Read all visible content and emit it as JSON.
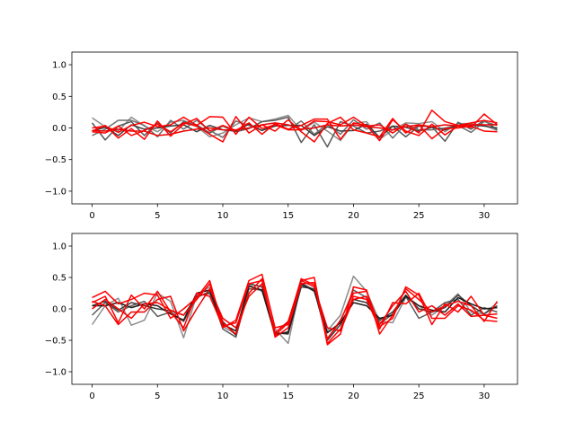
{
  "chart_data": [
    {
      "type": "line",
      "title": "",
      "xlabel": "",
      "ylabel": "",
      "xlim": [
        -1.55,
        32.55
      ],
      "ylim": [
        -1.2,
        1.2
      ],
      "xticks": [
        0,
        5,
        10,
        15,
        20,
        25,
        30
      ],
      "xtick_labels": [
        "0",
        "5",
        "10",
        "15",
        "20",
        "25",
        "30"
      ],
      "yticks": [
        -1.0,
        -0.5,
        0.0,
        0.5,
        1.0
      ],
      "ytick_labels": [
        "−1.0",
        "−0.5",
        "0.0",
        "0.5",
        "1.0"
      ],
      "grid": false,
      "x": [
        0,
        1,
        2,
        3,
        4,
        5,
        6,
        7,
        8,
        9,
        10,
        11,
        12,
        13,
        14,
        15,
        16,
        17,
        18,
        19,
        20,
        21,
        22,
        23,
        24,
        25,
        26,
        27,
        28,
        29,
        30,
        31
      ],
      "series": [
        {
          "color": "#808080",
          "values": [
            0.16,
            0.02,
            -0.05,
            0.17,
            0.03,
            -0.06,
            0.09,
            0.12,
            0.02,
            -0.14,
            -0.08,
            0.05,
            0.16,
            0.1,
            0.14,
            0.2,
            -0.04,
            0.09,
            -0.05,
            -0.2,
            0.07,
            0.1,
            -0.18,
            -0.03,
            0.08,
            0.07,
            0.1,
            -0.06,
            0.07,
            0.07,
            0.04,
            -0.04
          ]
        },
        {
          "color": "#595959",
          "values": [
            0.08,
            -0.19,
            0.03,
            0.1,
            -0.12,
            0.08,
            -0.08,
            0.1,
            0.05,
            -0.08,
            0.03,
            -0.06,
            -0.01,
            0.1,
            0.12,
            0.17,
            -0.23,
            0.05,
            -0.3,
            0.1,
            0.03,
            -0.08,
            -0.05,
            0.03,
            -0.14,
            0.03,
            0.02,
            -0.21,
            0.09,
            -0.02,
            0.12,
            -0.03
          ]
        },
        {
          "color": "#6e6e6e",
          "values": [
            -0.12,
            -0.02,
            0.12,
            0.12,
            0.04,
            -0.14,
            0.12,
            -0.02,
            0.12,
            -0.04,
            -0.15,
            0.11,
            0.04,
            -0.04,
            0.06,
            -0.03,
            0.11,
            -0.1,
            0.06,
            -0.1,
            0.13,
            -0.02,
            0.08,
            -0.16,
            0.06,
            -0.03,
            -0.03,
            0.0,
            0.04,
            -0.07,
            0.1,
            0.04
          ]
        },
        {
          "color": "#3c3c3c",
          "values": [
            -0.05,
            0.01,
            -0.12,
            0.05,
            -0.02,
            0.0,
            0.03,
            0.05,
            -0.06,
            0.04,
            -0.03,
            -0.05,
            0.06,
            -0.04,
            0.03,
            0.04,
            0.04,
            -0.12,
            0.02,
            -0.05,
            -0.04,
            0.06,
            -0.15,
            0.03,
            0.01,
            -0.05,
            0.01,
            -0.03,
            0.04,
            0.05,
            0.03,
            0.0
          ]
        },
        {
          "color": "#ff0000",
          "values": [
            -0.05,
            0.04,
            -0.16,
            -0.01,
            -0.18,
            0.11,
            -0.13,
            0.06,
            0.15,
            -0.05,
            0.04,
            -0.04,
            0.08,
            -0.1,
            0.07,
            -0.02,
            0.04,
            0.14,
            0.14,
            -0.18,
            0.08,
            0.04,
            -0.2,
            0.13,
            -0.05,
            -0.12,
            0.06,
            -0.11,
            0.03,
            0.01,
            0.22,
            0.05
          ]
        },
        {
          "color": "#ff0000",
          "values": [
            0.0,
            0.03,
            -0.07,
            0.04,
            0.09,
            0.02,
            0.05,
            0.17,
            0.04,
            0.18,
            0.17,
            -0.1,
            0.17,
            -0.01,
            0.05,
            -0.03,
            -0.03,
            0.11,
            0.1,
            0.05,
            0.17,
            0.03,
            0.05,
            -0.08,
            0.06,
            -0.08,
            0.28,
            0.1,
            0.04,
            0.08,
            0.12,
            0.08
          ]
        },
        {
          "color": "#ff0000",
          "values": [
            -0.06,
            -0.08,
            0.03,
            -0.12,
            -0.04,
            0.06,
            -0.06,
            0.08,
            0.03,
            -0.1,
            -0.22,
            0.18,
            -0.08,
            0.05,
            -0.05,
            0.13,
            -0.06,
            -0.22,
            0.07,
            0.17,
            -0.03,
            -0.08,
            -0.14,
            0.15,
            -0.08,
            0.05,
            -0.17,
            -0.01,
            0.0,
            0.03,
            -0.05,
            -0.06
          ]
        },
        {
          "color": "#ee0000",
          "values": [
            -0.04,
            -0.05,
            -0.02,
            -0.05,
            -0.05,
            -0.12,
            -0.1,
            -0.05,
            -0.02,
            0.0,
            -0.03,
            -0.03,
            0.0,
            0.05,
            0.08,
            0.05,
            -0.02,
            0.0,
            0.05,
            0.03,
            0.05,
            0.02,
            0.0,
            -0.03,
            0.02,
            0.05,
            0.02,
            0.05,
            0.03,
            0.05,
            0.05,
            0.05
          ]
        }
      ]
    },
    {
      "type": "line",
      "title": "",
      "xlabel": "",
      "ylabel": "",
      "xlim": [
        -1.55,
        32.55
      ],
      "ylim": [
        -1.2,
        1.2
      ],
      "xticks": [
        0,
        5,
        10,
        15,
        20,
        25,
        30
      ],
      "xtick_labels": [
        "0",
        "5",
        "10",
        "15",
        "20",
        "25",
        "30"
      ],
      "yticks": [
        -1.0,
        -0.5,
        0.0,
        0.5,
        1.0
      ],
      "ytick_labels": [
        "−1.0",
        "−0.5",
        "0.0",
        "0.5",
        "1.0"
      ],
      "grid": false,
      "x": [
        0,
        1,
        2,
        3,
        4,
        5,
        6,
        7,
        8,
        9,
        10,
        11,
        12,
        13,
        14,
        15,
        16,
        17,
        18,
        19,
        20,
        21,
        22,
        23,
        24,
        25,
        26,
        27,
        28,
        29,
        30,
        31
      ],
      "series": [
        {
          "color": "#808080",
          "values": [
            -0.25,
            0.05,
            0.17,
            -0.26,
            -0.18,
            0.25,
            0.12,
            -0.46,
            0.22,
            0.35,
            -0.28,
            -0.4,
            0.38,
            0.28,
            -0.32,
            -0.55,
            0.42,
            0.3,
            -0.35,
            -0.1,
            0.52,
            0.28,
            -0.2,
            -0.22,
            0.18,
            0.05,
            -0.1,
            0.05,
            0.24,
            -0.05,
            -0.08,
            0.1
          ]
        },
        {
          "color": "#595959",
          "values": [
            -0.1,
            0.1,
            -0.05,
            0.05,
            0.12,
            -0.12,
            -0.05,
            -0.2,
            0.18,
            0.28,
            -0.32,
            -0.45,
            0.32,
            0.3,
            -0.42,
            -0.36,
            0.38,
            0.3,
            -0.47,
            -0.2,
            0.3,
            0.18,
            -0.24,
            -0.08,
            0.2,
            -0.15,
            -0.05,
            0.1,
            0.15,
            -0.1,
            0.02,
            -0.05
          ]
        },
        {
          "color": "#3c3c3c",
          "values": [
            0.05,
            0.12,
            -0.02,
            0.1,
            0.05,
            0.0,
            -0.03,
            -0.1,
            0.2,
            0.25,
            -0.2,
            -0.42,
            0.4,
            0.35,
            -0.38,
            -0.4,
            0.35,
            0.32,
            -0.5,
            -0.25,
            0.15,
            0.1,
            -0.18,
            -0.05,
            0.22,
            0.0,
            -0.05,
            0.02,
            0.22,
            0.05,
            -0.08,
            0.05
          ]
        },
        {
          "color": "#1a1a1a",
          "values": [
            0.05,
            0.05,
            0.1,
            0.02,
            0.08,
            0.05,
            -0.08,
            -0.18,
            0.25,
            0.3,
            -0.25,
            -0.35,
            0.36,
            0.3,
            -0.4,
            -0.38,
            0.4,
            0.28,
            -0.38,
            -0.22,
            0.1,
            0.05,
            -0.15,
            -0.1,
            0.2,
            0.05,
            -0.02,
            -0.05,
            0.18,
            0.08,
            0.0,
            0.02
          ]
        },
        {
          "color": "#ff0000",
          "values": [
            0.18,
            0.28,
            0.08,
            0.15,
            0.25,
            0.22,
            -0.15,
            0.0,
            0.18,
            0.45,
            -0.3,
            -0.18,
            0.45,
            0.55,
            -0.3,
            -0.25,
            0.45,
            0.5,
            -0.57,
            -0.4,
            0.35,
            0.3,
            -0.4,
            -0.1,
            0.32,
            0.15,
            -0.05,
            0.05,
            0.12,
            0.05,
            -0.2,
            0.12
          ]
        },
        {
          "color": "#ff0000",
          "values": [
            0.1,
            0.2,
            -0.22,
            0.22,
            0.0,
            0.28,
            -0.05,
            -0.3,
            0.25,
            0.2,
            -0.28,
            -0.22,
            0.4,
            0.45,
            -0.42,
            -0.22,
            0.48,
            0.38,
            -0.48,
            -0.18,
            0.25,
            0.28,
            -0.28,
            -0.15,
            0.35,
            0.22,
            -0.25,
            0.08,
            -0.05,
            0.2,
            -0.1,
            -0.15
          ]
        },
        {
          "color": "#ff0000",
          "values": [
            0.0,
            0.15,
            0.0,
            -0.15,
            0.08,
            0.1,
            -0.02,
            -0.1,
            0.15,
            0.4,
            -0.22,
            -0.4,
            0.25,
            0.48,
            -0.45,
            -0.3,
            0.4,
            0.42,
            -0.55,
            -0.32,
            0.2,
            0.15,
            -0.32,
            0.1,
            0.08,
            0.25,
            -0.15,
            -0.15,
            0.05,
            -0.02,
            -0.18,
            -0.2
          ]
        },
        {
          "color": "#ee0000",
          "values": [
            0.12,
            0.05,
            -0.25,
            -0.05,
            -0.05,
            0.15,
            0.2,
            -0.35,
            0.0,
            0.32,
            -0.15,
            -0.3,
            0.2,
            0.4,
            -0.38,
            -0.2,
            0.45,
            0.35,
            -0.3,
            -0.35,
            0.15,
            0.2,
            -0.25,
            0.05,
            0.28,
            -0.05,
            0.05,
            -0.1,
            0.08,
            -0.12,
            -0.1,
            -0.08
          ]
        }
      ]
    }
  ]
}
